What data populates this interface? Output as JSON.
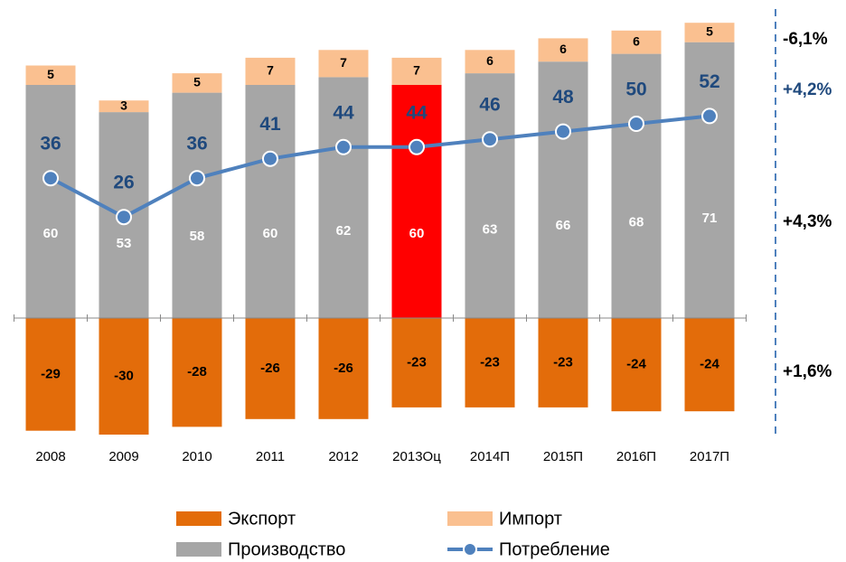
{
  "chart_data": {
    "type": "bar",
    "stacked": true,
    "categories": [
      "2008",
      "2009",
      "2010",
      "2011",
      "2012",
      "2013Оц",
      "2014П",
      "2015П",
      "2016П",
      "2017П"
    ],
    "series": [
      {
        "name": "Экспорт",
        "color": "#e36c0a",
        "values": [
          -29,
          -30,
          -28,
          -26,
          -26,
          -23,
          -23,
          -23,
          -24,
          -24
        ]
      },
      {
        "name": "Производство",
        "color": "#a6a6a6",
        "colors": [
          null,
          null,
          null,
          null,
          null,
          "#ff0000",
          null,
          null,
          null,
          null
        ],
        "values": [
          60,
          53,
          58,
          60,
          62,
          60,
          63,
          66,
          68,
          71
        ]
      },
      {
        "name": "Импорт",
        "color": "#fac090",
        "values": [
          5,
          3,
          5,
          7,
          7,
          7,
          6,
          6,
          6,
          5
        ]
      },
      {
        "name": "Потребление",
        "type": "line",
        "color": "#4f81bd",
        "values": [
          36,
          26,
          36,
          41,
          44,
          44,
          46,
          48,
          50,
          52
        ]
      }
    ],
    "ylim": [
      -31,
      77
    ],
    "annotations": [
      {
        "text": "-6,1%",
        "color": "#000000"
      },
      {
        "text": "+4,2%",
        "color": "#1f497d"
      },
      {
        "text": "+4,3%",
        "color": "#000000"
      },
      {
        "text": "+1,6%",
        "color": "#000000"
      }
    ]
  }
}
